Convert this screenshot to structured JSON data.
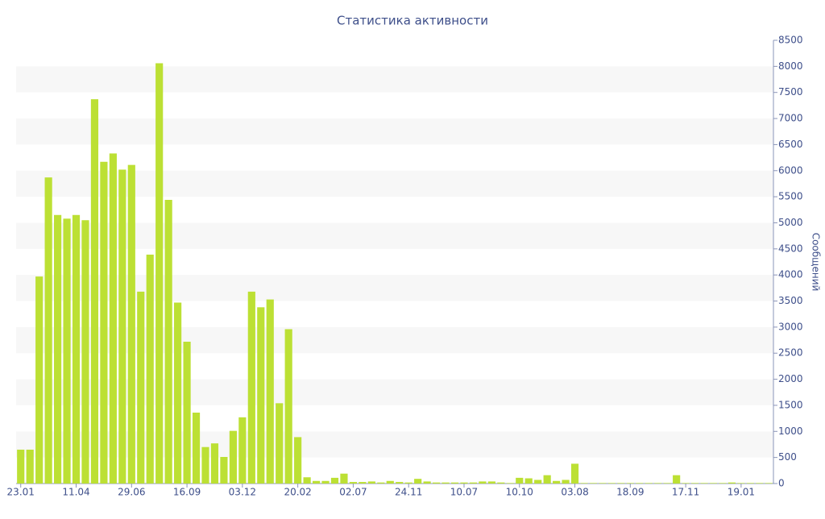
{
  "chart_data": {
    "type": "bar",
    "title": "Статистика активности",
    "y_label": "Сообщений",
    "categories": [
      "23.01",
      null,
      null,
      null,
      null,
      null,
      "11.04",
      null,
      null,
      null,
      null,
      null,
      "29.06",
      null,
      null,
      null,
      null,
      null,
      "16.09",
      null,
      null,
      null,
      null,
      null,
      "03.12",
      null,
      null,
      null,
      null,
      null,
      "20.02",
      null,
      null,
      null,
      null,
      null,
      "02.07",
      null,
      null,
      null,
      null,
      null,
      "24.11",
      null,
      null,
      null,
      null,
      null,
      "10.07",
      null,
      null,
      null,
      null,
      null,
      "10.10",
      null,
      null,
      null,
      null,
      null,
      "03.08",
      null,
      null,
      null,
      null,
      null,
      "18.09",
      null,
      null,
      null,
      null,
      null,
      "17.11",
      null,
      null,
      null,
      null,
      null,
      "19.01",
      null,
      null,
      null
    ],
    "values": [
      650,
      650,
      3970,
      5870,
      5150,
      5080,
      5150,
      5050,
      7370,
      6170,
      6330,
      6020,
      6110,
      3680,
      4390,
      8060,
      5440,
      3470,
      2720,
      1360,
      700,
      770,
      510,
      1010,
      1270,
      3680,
      3380,
      3530,
      1540,
      2960,
      890,
      120,
      50,
      50,
      110,
      190,
      30,
      30,
      40,
      20,
      50,
      30,
      20,
      90,
      40,
      20,
      20,
      20,
      20,
      20,
      40,
      40,
      20,
      10,
      110,
      100,
      70,
      160,
      50,
      70,
      380,
      10,
      10,
      10,
      10,
      10,
      10,
      10,
      10,
      10,
      10,
      160,
      10,
      10,
      10,
      10,
      10,
      20,
      10,
      10,
      10,
      10
    ],
    "color": "#bce034",
    "ylim": [
      0,
      8500
    ],
    "yticks": [
      0,
      500,
      1000,
      1500,
      2000,
      2500,
      3000,
      3500,
      4000,
      4500,
      5000,
      5500,
      6000,
      6500,
      7000,
      7500,
      8000,
      8500
    ],
    "y_axis_side": "right",
    "grid": true,
    "grid_color": "#f7f7f7",
    "text_color": "#3e4f8a"
  }
}
